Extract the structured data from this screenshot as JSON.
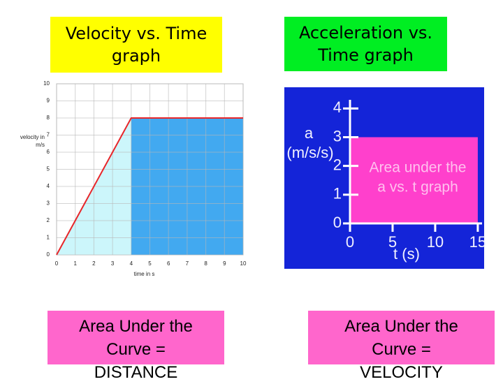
{
  "slide": {
    "top_boxes": [
      "Velocity vs. Time graph",
      "Acceleration vs. Time graph"
    ],
    "bottom_boxes": [
      [
        "Area Under the",
        "Curve =",
        "DISTANCE"
      ],
      [
        "Area Under the",
        "Curve =",
        "VELOCITY"
      ]
    ]
  },
  "chart_data": [
    {
      "type": "line",
      "x": [
        0,
        4,
        10
      ],
      "values": [
        0,
        8,
        8
      ],
      "color": "#e8262a",
      "segment_colors": [
        "#ccf6fb",
        "#42a9f0"
      ],
      "xlim": [
        0,
        10
      ],
      "ylim": [
        0,
        10
      ],
      "xticks": [
        0,
        1,
        2,
        3,
        4,
        5,
        6,
        7,
        8,
        9,
        10
      ],
      "yticks": [
        0,
        1,
        2,
        3,
        4,
        5,
        6,
        7,
        8,
        9,
        10
      ],
      "xlabel": "time in s",
      "ylabel": [
        "velocity in",
        "m/s"
      ],
      "grid": true
    },
    {
      "type": "area",
      "x": [
        0,
        15
      ],
      "values": [
        3,
        3
      ],
      "color": "#ff40cc",
      "background": "#1424d8",
      "xlim": [
        0,
        15.5
      ],
      "ylim": [
        0,
        4.3
      ],
      "xticks": [
        0,
        5,
        10,
        15
      ],
      "yticks": [
        0,
        1,
        2,
        3,
        4
      ],
      "xlabel": "t (s)",
      "ylabel": [
        "a",
        "(m/s/s)"
      ],
      "annotation": [
        "Area under the",
        "a vs. t graph"
      ],
      "grid": false
    }
  ]
}
